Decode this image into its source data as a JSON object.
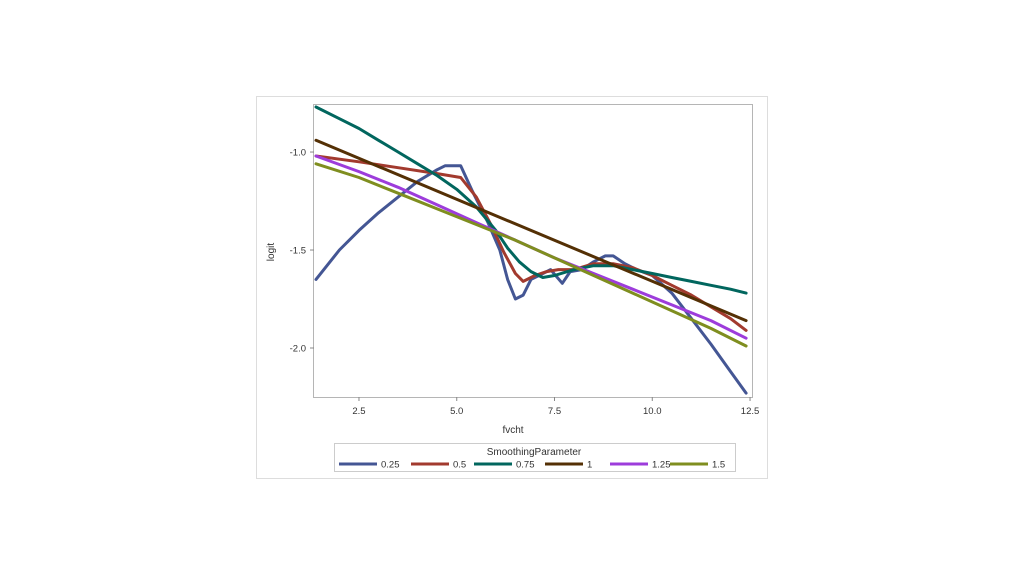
{
  "chart_data": {
    "type": "line",
    "title": "",
    "xlabel": "fvcht",
    "ylabel": "logit",
    "xlim": [
      1.35,
      12.55
    ],
    "ylim": [
      -2.25,
      -0.76
    ],
    "xticks": [
      2.5,
      5.0,
      7.5,
      10.0,
      12.5
    ],
    "xtick_labels": [
      "2.5",
      "5.0",
      "7.5",
      "10.0",
      "12.5"
    ],
    "yticks": [
      -1.0,
      -1.5,
      -2.0
    ],
    "ytick_labels": [
      "-1.0",
      "-1.5",
      "-2.0"
    ],
    "grid": false,
    "legend": {
      "title": "SmoothingParameter",
      "placement": "bottom"
    },
    "series": [
      {
        "name": "0.25",
        "color": "#445694",
        "x": [
          1.4,
          2.0,
          2.5,
          3.0,
          3.5,
          4.0,
          4.5,
          4.7,
          5.1,
          5.4,
          5.8,
          6.1,
          6.3,
          6.5,
          6.7,
          6.9,
          7.1,
          7.4,
          7.7,
          7.9,
          8.2,
          8.5,
          8.8,
          9.0,
          9.3,
          9.6,
          10.0,
          10.5,
          11.0,
          11.5,
          12.0,
          12.4
        ],
        "y": [
          -1.65,
          -1.5,
          -1.4,
          -1.31,
          -1.23,
          -1.15,
          -1.09,
          -1.07,
          -1.07,
          -1.2,
          -1.36,
          -1.5,
          -1.65,
          -1.75,
          -1.73,
          -1.65,
          -1.63,
          -1.6,
          -1.67,
          -1.61,
          -1.6,
          -1.56,
          -1.53,
          -1.53,
          -1.57,
          -1.6,
          -1.63,
          -1.72,
          -1.85,
          -1.98,
          -2.12,
          -2.23
        ]
      },
      {
        "name": "0.5",
        "color": "#a23a2e",
        "x": [
          1.4,
          2.5,
          3.5,
          4.5,
          5.1,
          5.5,
          5.9,
          6.2,
          6.5,
          6.7,
          7.0,
          7.3,
          7.6,
          8.0,
          8.5,
          9.0,
          9.5,
          10.0,
          10.5,
          11.0,
          11.5,
          12.0,
          12.4
        ],
        "y": [
          -1.02,
          -1.05,
          -1.08,
          -1.11,
          -1.13,
          -1.23,
          -1.38,
          -1.51,
          -1.62,
          -1.66,
          -1.63,
          -1.61,
          -1.6,
          -1.6,
          -1.57,
          -1.57,
          -1.59,
          -1.63,
          -1.68,
          -1.73,
          -1.79,
          -1.85,
          -1.91
        ]
      },
      {
        "name": "0.75",
        "color": "#01665e",
        "x": [
          1.4,
          2.0,
          2.5,
          3.0,
          3.5,
          4.0,
          4.5,
          5.0,
          5.5,
          6.0,
          6.3,
          6.6,
          6.9,
          7.2,
          7.5,
          8.0,
          8.5,
          9.0,
          9.5,
          10.0,
          10.5,
          11.0,
          11.5,
          12.0,
          12.4
        ],
        "y": [
          -0.77,
          -0.83,
          -0.88,
          -0.94,
          -1.0,
          -1.06,
          -1.12,
          -1.19,
          -1.28,
          -1.4,
          -1.49,
          -1.56,
          -1.61,
          -1.64,
          -1.63,
          -1.6,
          -1.58,
          -1.58,
          -1.6,
          -1.62,
          -1.64,
          -1.66,
          -1.68,
          -1.7,
          -1.72
        ]
      },
      {
        "name": "1",
        "color": "#543005",
        "x": [
          1.4,
          12.4
        ],
        "y": [
          -0.94,
          -1.86
        ]
      },
      {
        "name": "1.25",
        "color": "#9d3cdb",
        "x": [
          1.4,
          2.5,
          3.5,
          4.5,
          5.5,
          6.5,
          7.5,
          8.5,
          9.5,
          10.5,
          11.5,
          12.4
        ],
        "y": [
          -1.02,
          -1.1,
          -1.18,
          -1.27,
          -1.36,
          -1.45,
          -1.54,
          -1.62,
          -1.7,
          -1.78,
          -1.86,
          -1.95
        ]
      },
      {
        "name": "1.5",
        "color": "#7f8e1f",
        "x": [
          1.4,
          2.5,
          3.5,
          4.5,
          5.5,
          6.5,
          7.5,
          8.5,
          9.5,
          10.5,
          11.5,
          12.4
        ],
        "y": [
          -1.06,
          -1.13,
          -1.21,
          -1.29,
          -1.37,
          -1.45,
          -1.54,
          -1.63,
          -1.72,
          -1.81,
          -1.9,
          -1.99
        ]
      }
    ]
  }
}
